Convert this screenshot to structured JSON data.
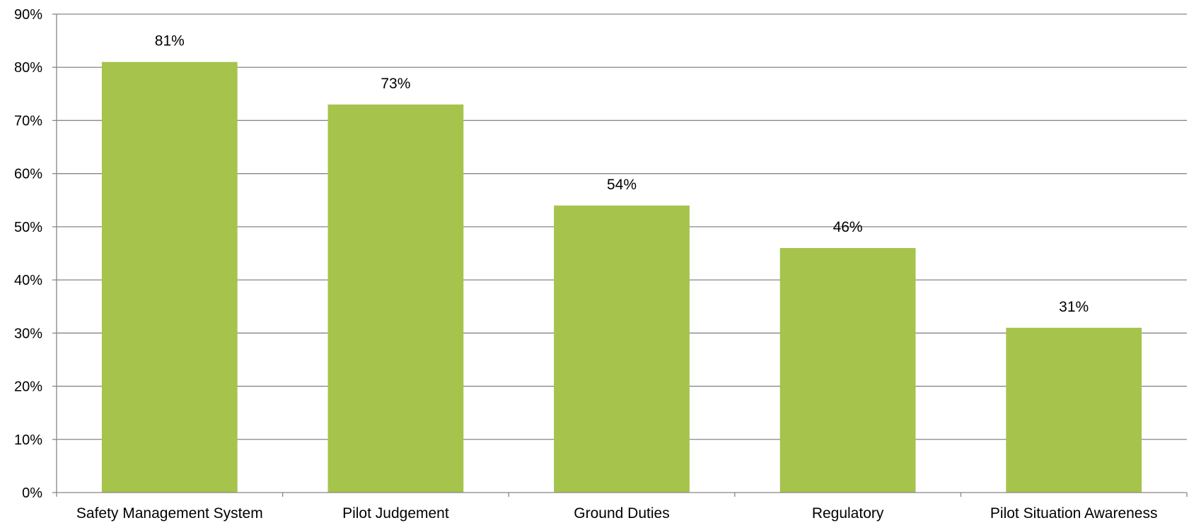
{
  "chart_data": {
    "type": "bar",
    "title": "",
    "xlabel": "",
    "ylabel": "",
    "categories": [
      "Safety Management System",
      "Pilot Judgement",
      "Ground Duties",
      "Regulatory",
      "Pilot Situation Awareness"
    ],
    "values": [
      81,
      73,
      54,
      46,
      31
    ],
    "data_labels": [
      "81%",
      "73%",
      "54%",
      "46%",
      "31%"
    ],
    "ylim": [
      0,
      90
    ],
    "yticks": [
      0,
      10,
      20,
      30,
      40,
      50,
      60,
      70,
      80,
      90
    ],
    "ytick_labels": [
      "0%",
      "10%",
      "20%",
      "30%",
      "40%",
      "50%",
      "60%",
      "70%",
      "80%",
      "90%"
    ],
    "grid": true,
    "legend": "none",
    "colors": {
      "bar": "#a6c34c",
      "grid": "#868686",
      "axis": "#868686"
    }
  }
}
